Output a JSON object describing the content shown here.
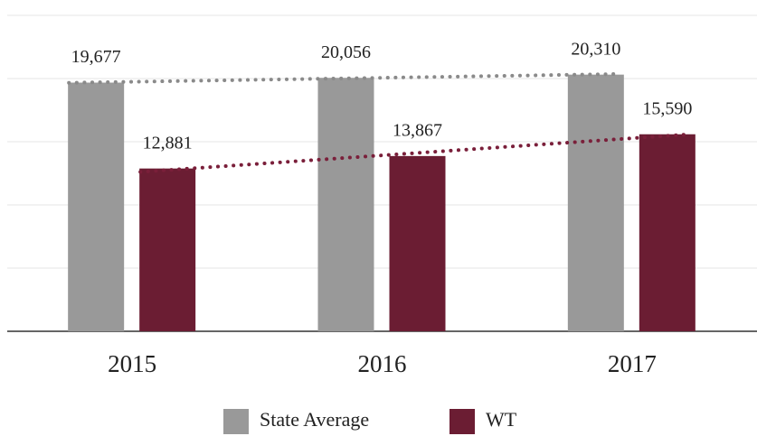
{
  "chart_data": {
    "type": "bar",
    "categories": [
      "2015",
      "2016",
      "2017"
    ],
    "series": [
      {
        "name": "State Average",
        "color": "#999999",
        "trend_color": "#8a8a8a",
        "values": [
          19677,
          20056,
          20310
        ],
        "value_labels": [
          "19,677",
          "20,056",
          "20,310"
        ]
      },
      {
        "name": "WT",
        "color": "#6b1d33",
        "trend_color": "#7a1f3a",
        "values": [
          12881,
          13867,
          15590
        ],
        "value_labels": [
          "12,881",
          "13,867",
          "15,590"
        ]
      }
    ],
    "ylim": [
      0,
      25000
    ],
    "yticks": [
      0,
      5000,
      10000,
      15000,
      20000,
      25000
    ],
    "grid": true,
    "trendline": true,
    "legend": "bottom"
  }
}
